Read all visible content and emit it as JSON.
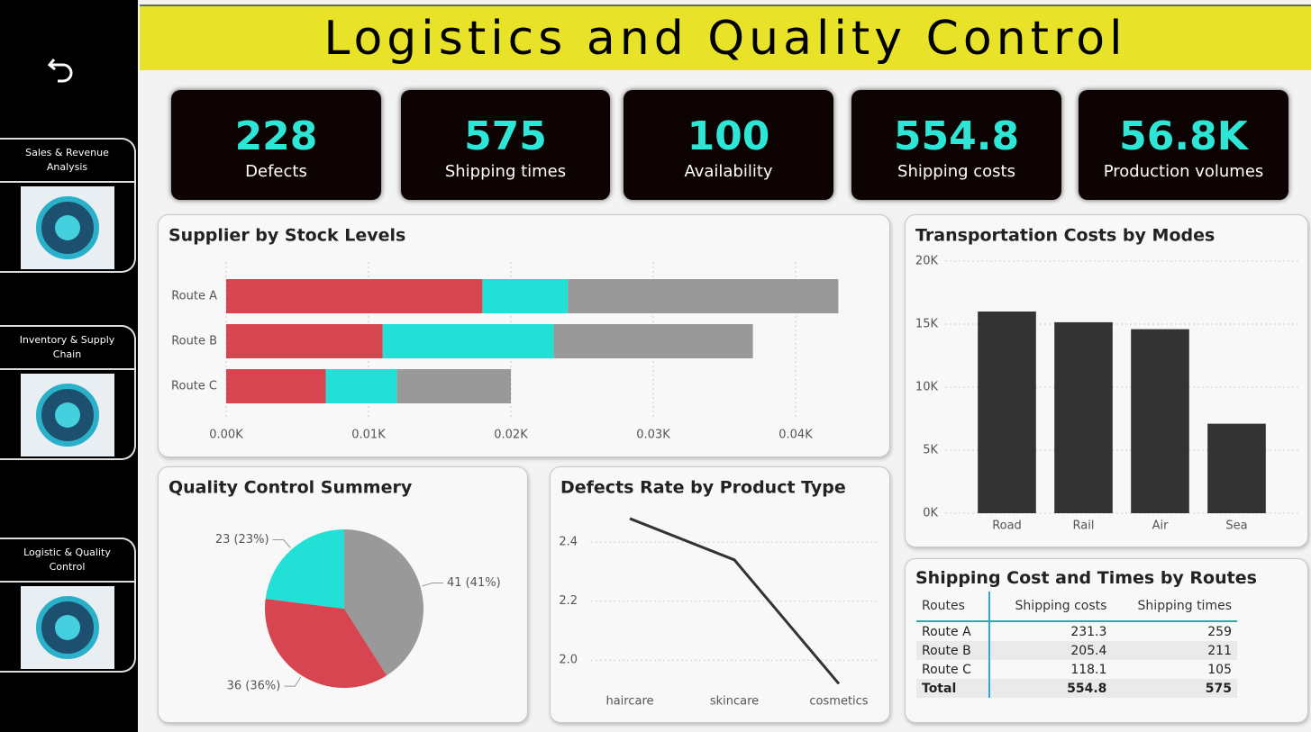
{
  "header": {
    "title": "Logistics and Quality Control"
  },
  "sidebar": {
    "nav": [
      {
        "label": "Sales & Revenue Analysis"
      },
      {
        "label": "Inventory & Supply Chain"
      },
      {
        "label": "Logistic & Quality Control"
      }
    ]
  },
  "kpis": [
    {
      "value": 228,
      "label": "Defects"
    },
    {
      "value": 575,
      "label": "Shipping times"
    },
    {
      "value": 100,
      "label": "Availability"
    },
    {
      "value": 554.8,
      "label": "Shipping costs"
    },
    {
      "value": "56.8K",
      "label": "Production volumes"
    }
  ],
  "chart_data": [
    {
      "type": "bar",
      "orientation": "horizontal",
      "stacked": true,
      "title": "Supplier by Stock Levels",
      "categories": [
        "Route A",
        "Route B",
        "Route C"
      ],
      "series": [
        {
          "color": "#d64550",
          "values": [
            18,
            11,
            7
          ]
        },
        {
          "color": "#22e0d6",
          "values": [
            6,
            12,
            5
          ]
        },
        {
          "color": "#999999",
          "values": [
            19,
            14,
            8
          ]
        }
      ],
      "xlim": [
        0,
        45
      ],
      "xticks": [
        {
          "value": 0,
          "label": "0.00K"
        },
        {
          "value": 10,
          "label": "0.01K"
        },
        {
          "value": 20,
          "label": "0.02K"
        },
        {
          "value": 30,
          "label": "0.03K"
        },
        {
          "value": 40,
          "label": "0.04K"
        }
      ],
      "grid": true
    },
    {
      "type": "bar",
      "title": "Transportation Costs by Modes",
      "categories": [
        "Road",
        "Rail",
        "Air",
        "Sea"
      ],
      "values": [
        16000,
        15150,
        14600,
        7100
      ],
      "color": "#333333",
      "ylim": [
        0,
        20000
      ],
      "yticks": [
        {
          "value": 0,
          "label": "0K"
        },
        {
          "value": 5000,
          "label": "5K"
        },
        {
          "value": 10000,
          "label": "10K"
        },
        {
          "value": 15000,
          "label": "15K"
        },
        {
          "value": 20000,
          "label": "20K"
        }
      ],
      "grid": true
    },
    {
      "type": "pie",
      "title": "Quality Control Summery",
      "values": [
        41,
        36,
        23
      ],
      "value_labels": [
        "41 (41%)",
        "36 (36%)",
        "23 (23%)"
      ],
      "colors": [
        "#999999",
        "#d64550",
        "#22e0d6"
      ]
    },
    {
      "type": "line",
      "title": "Defects Rate by Product Type",
      "categories": [
        "haircare",
        "skincare",
        "cosmetics"
      ],
      "values": [
        2.48,
        2.34,
        1.92
      ],
      "color": "#333333",
      "ylim": [
        1.9,
        2.55
      ],
      "yticks": [
        {
          "value": 2,
          "label": "2.0"
        },
        {
          "value": 2.2,
          "label": "2.2"
        },
        {
          "value": 2.4,
          "label": "2.4"
        }
      ],
      "grid": true
    }
  ],
  "table": {
    "title": "Shipping Cost and Times by Routes",
    "columns": [
      "Routes",
      "Shipping costs",
      "Shipping times"
    ],
    "rows": [
      [
        "Route A",
        231.3,
        259
      ],
      [
        "Route B",
        205.4,
        211
      ],
      [
        "Route C",
        118.1,
        105
      ],
      [
        "Total",
        554.8,
        575
      ]
    ]
  }
}
